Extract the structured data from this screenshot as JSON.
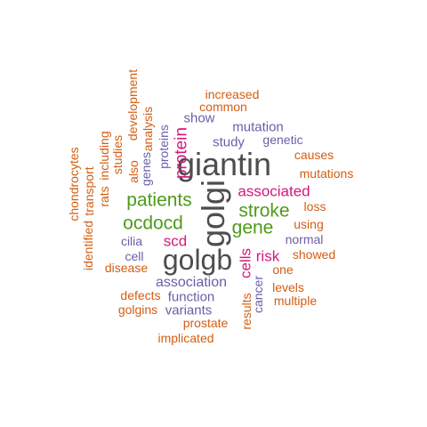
{
  "words": {
    "giantin": "giantin",
    "golgi": "golgi",
    "golgb": "golgb",
    "patients": "patients",
    "ocdocd": "ocdocd",
    "stroke": "stroke",
    "gene": "gene",
    "associated": "associated",
    "protein": "protein",
    "scd": "scd",
    "risk": "risk",
    "cells": "cells",
    "association": "association",
    "study": "study",
    "mutation": "mutation",
    "genetic": "genetic",
    "show": "show",
    "proteins": "proteins",
    "genes": "genes",
    "cilia": "cilia",
    "cell": "cell",
    "normal": "normal",
    "function": "function",
    "variants": "variants",
    "cancer": "cancer",
    "increased": "increased",
    "common": "common",
    "causes": "causes",
    "mutations": "mutations",
    "loss": "loss",
    "using": "using",
    "showed": "showed",
    "one": "one",
    "levels": "levels",
    "multiple": "multiple",
    "results": "results",
    "prostate": "prostate",
    "implicated": "implicated",
    "golgins": "golgins",
    "defects": "defects",
    "disease": "disease",
    "identified": "identified",
    "chondrocytes": "chondrocytes",
    "transport": "transport",
    "rats": "rats",
    "including": "including",
    "studies": "studies",
    "also": "also",
    "analysis": "analysis",
    "development": "development"
  },
  "colors": {
    "dark": "#4D4D4D",
    "green": "#4E9A1B",
    "pink": "#D6177B",
    "purple": "#6C5DA8",
    "orange": "#D35E12",
    "background": "#FFFFFF"
  }
}
